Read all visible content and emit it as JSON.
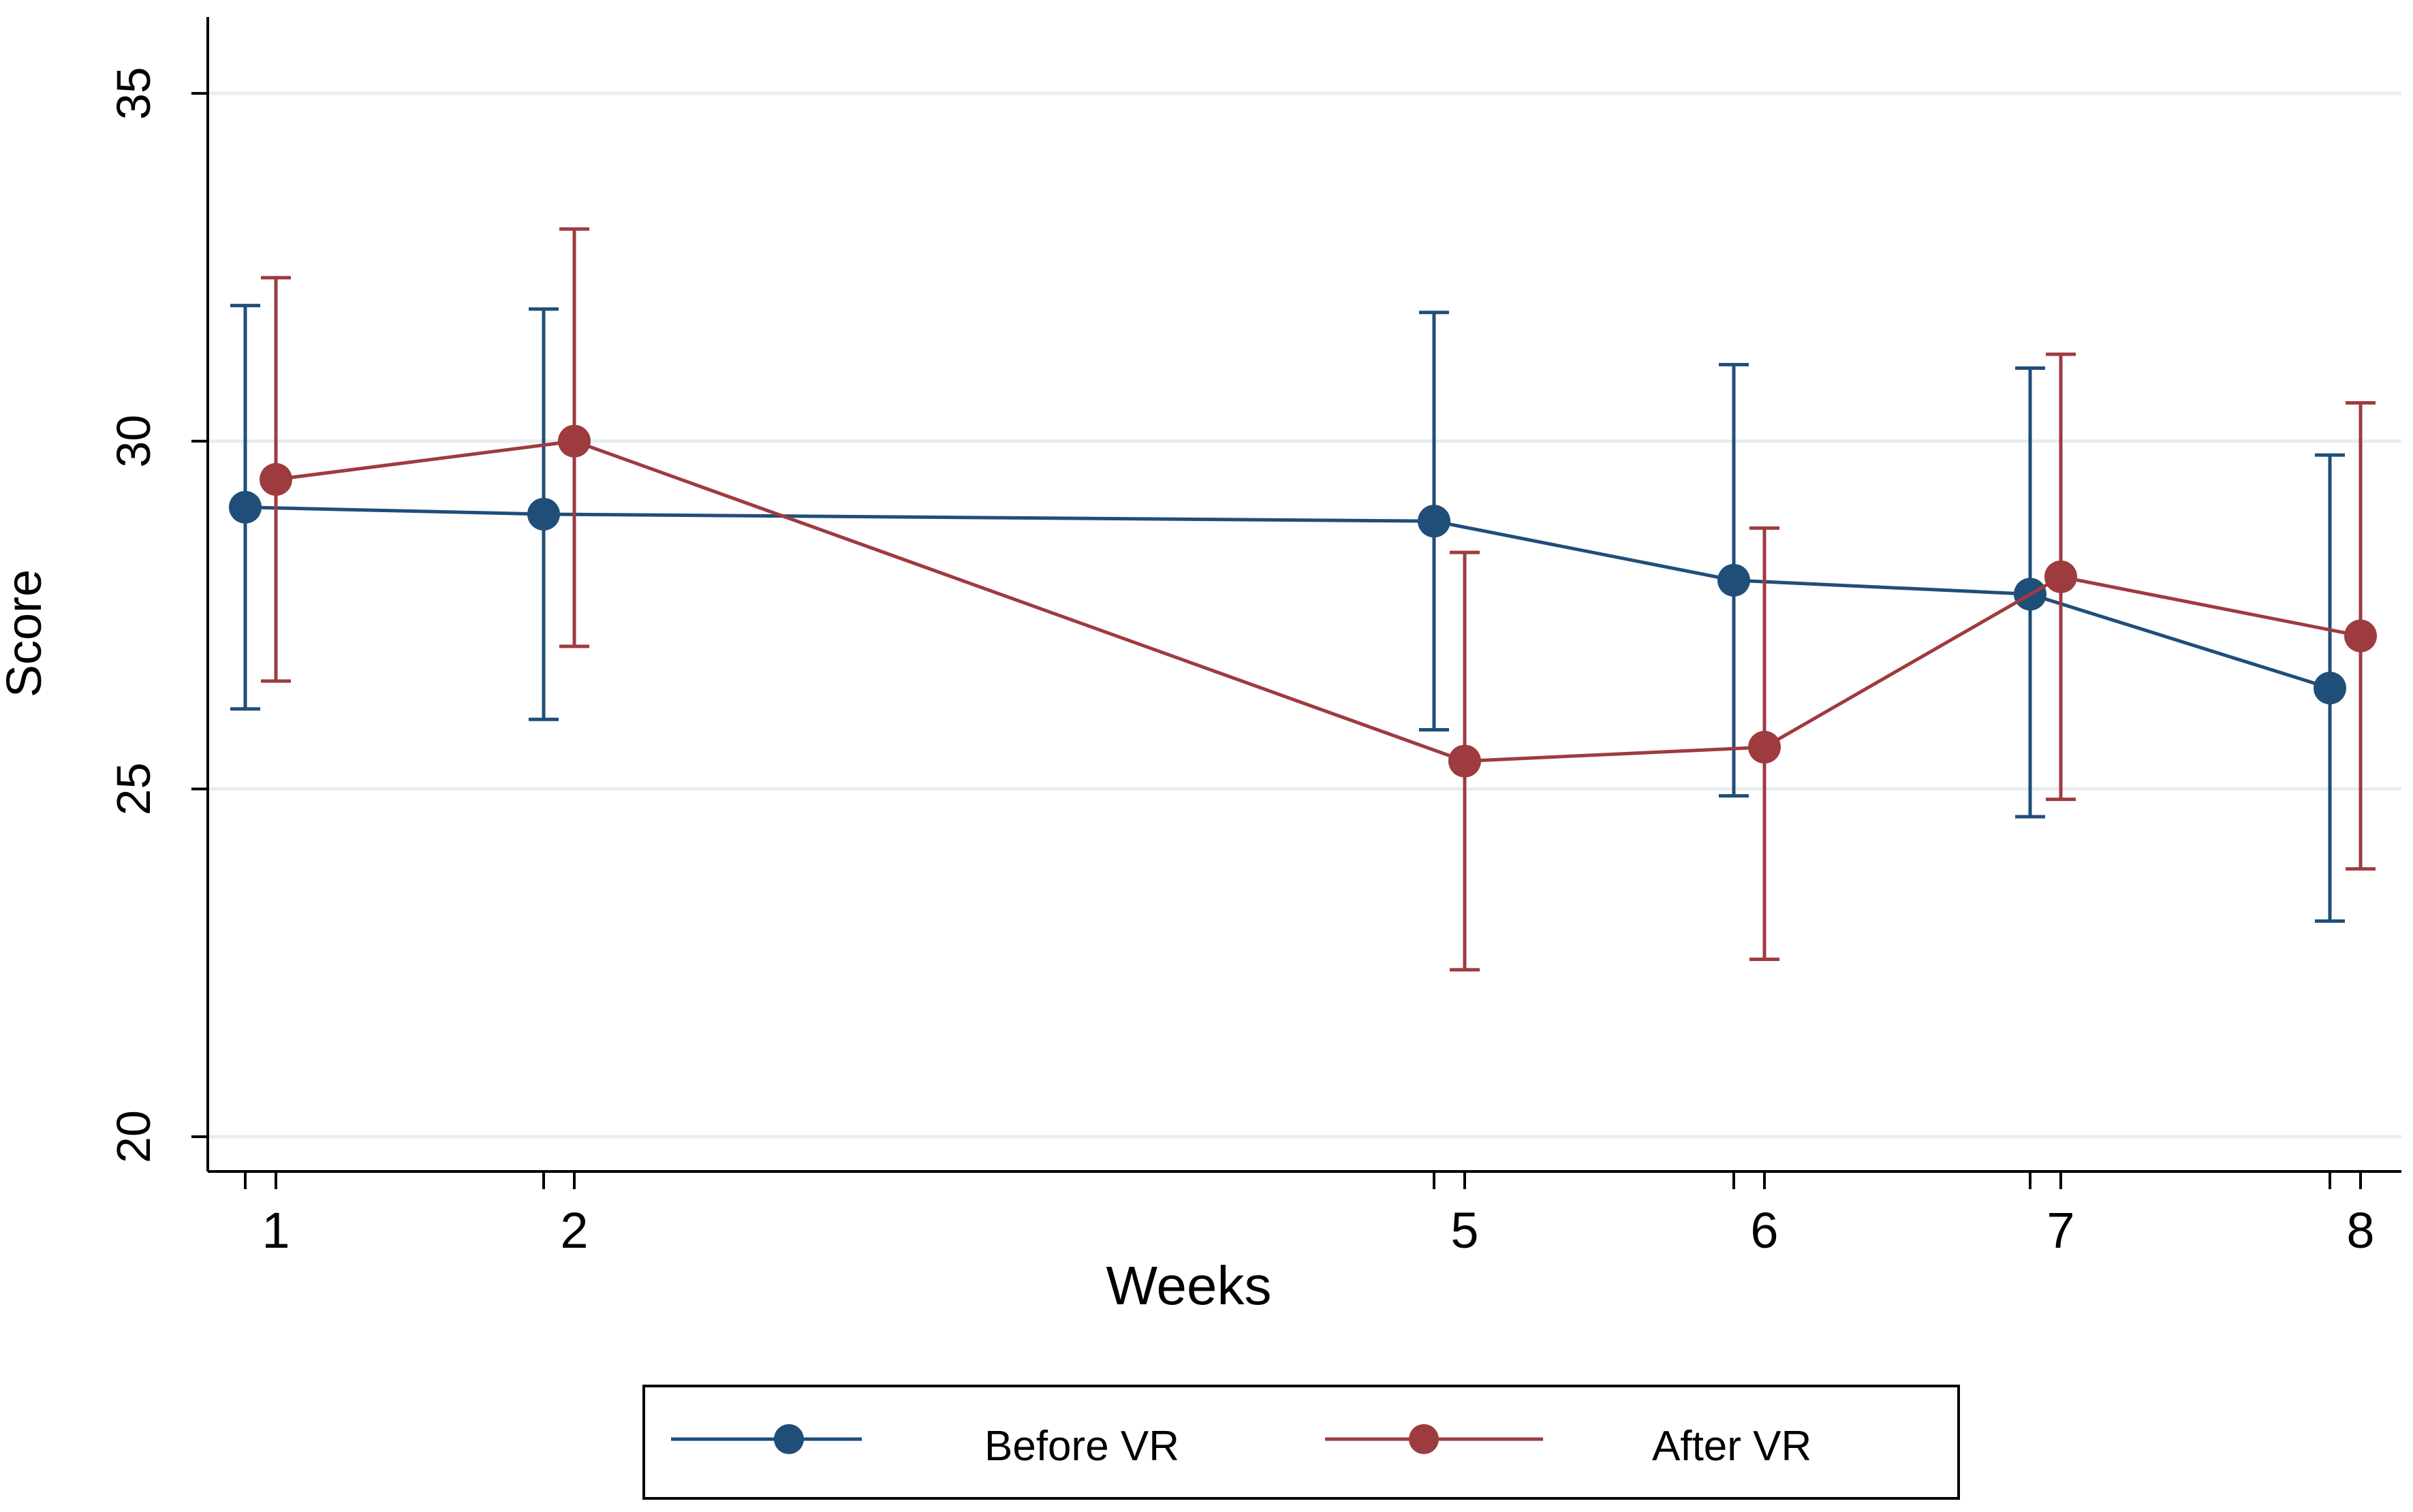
{
  "chart_data": {
    "type": "line",
    "title": "",
    "xlabel": "Weeks",
    "ylabel": "Score",
    "ylim": [
      19.5,
      36
    ],
    "y_ticks": [
      20,
      25,
      30,
      35
    ],
    "x_ticks": [
      1,
      2,
      5,
      6,
      7,
      8
    ],
    "grid": true,
    "legend_position": "bottom",
    "series": [
      {
        "name": "Before VR",
        "color": "#1f4e79",
        "points": [
          {
            "week": 1,
            "mean": 29.05,
            "lower": 26.15,
            "upper": 31.95
          },
          {
            "week": 2,
            "mean": 28.95,
            "lower": 26.0,
            "upper": 31.9
          },
          {
            "week": 5,
            "mean": 28.85,
            "lower": 25.85,
            "upper": 31.85
          },
          {
            "week": 6,
            "mean": 28.0,
            "lower": 24.9,
            "upper": 31.1
          },
          {
            "week": 7,
            "mean": 27.8,
            "lower": 24.6,
            "upper": 31.05
          },
          {
            "week": 8,
            "mean": 26.45,
            "lower": 23.1,
            "upper": 29.8
          }
        ]
      },
      {
        "name": "After VR",
        "color": "#9e3b3f",
        "points": [
          {
            "week": 1,
            "mean": 29.45,
            "lower": 26.55,
            "upper": 32.35
          },
          {
            "week": 2,
            "mean": 30.0,
            "lower": 27.05,
            "upper": 33.05
          },
          {
            "week": 5,
            "mean": 25.4,
            "lower": 22.4,
            "upper": 28.4
          },
          {
            "week": 6,
            "mean": 25.6,
            "lower": 22.55,
            "upper": 28.75
          },
          {
            "week": 7,
            "mean": 28.05,
            "lower": 24.85,
            "upper": 31.25
          },
          {
            "week": 8,
            "mean": 27.2,
            "lower": 23.85,
            "upper": 30.55
          }
        ]
      }
    ]
  },
  "legend": {
    "before_label": "Before VR",
    "after_label": "After VR"
  }
}
